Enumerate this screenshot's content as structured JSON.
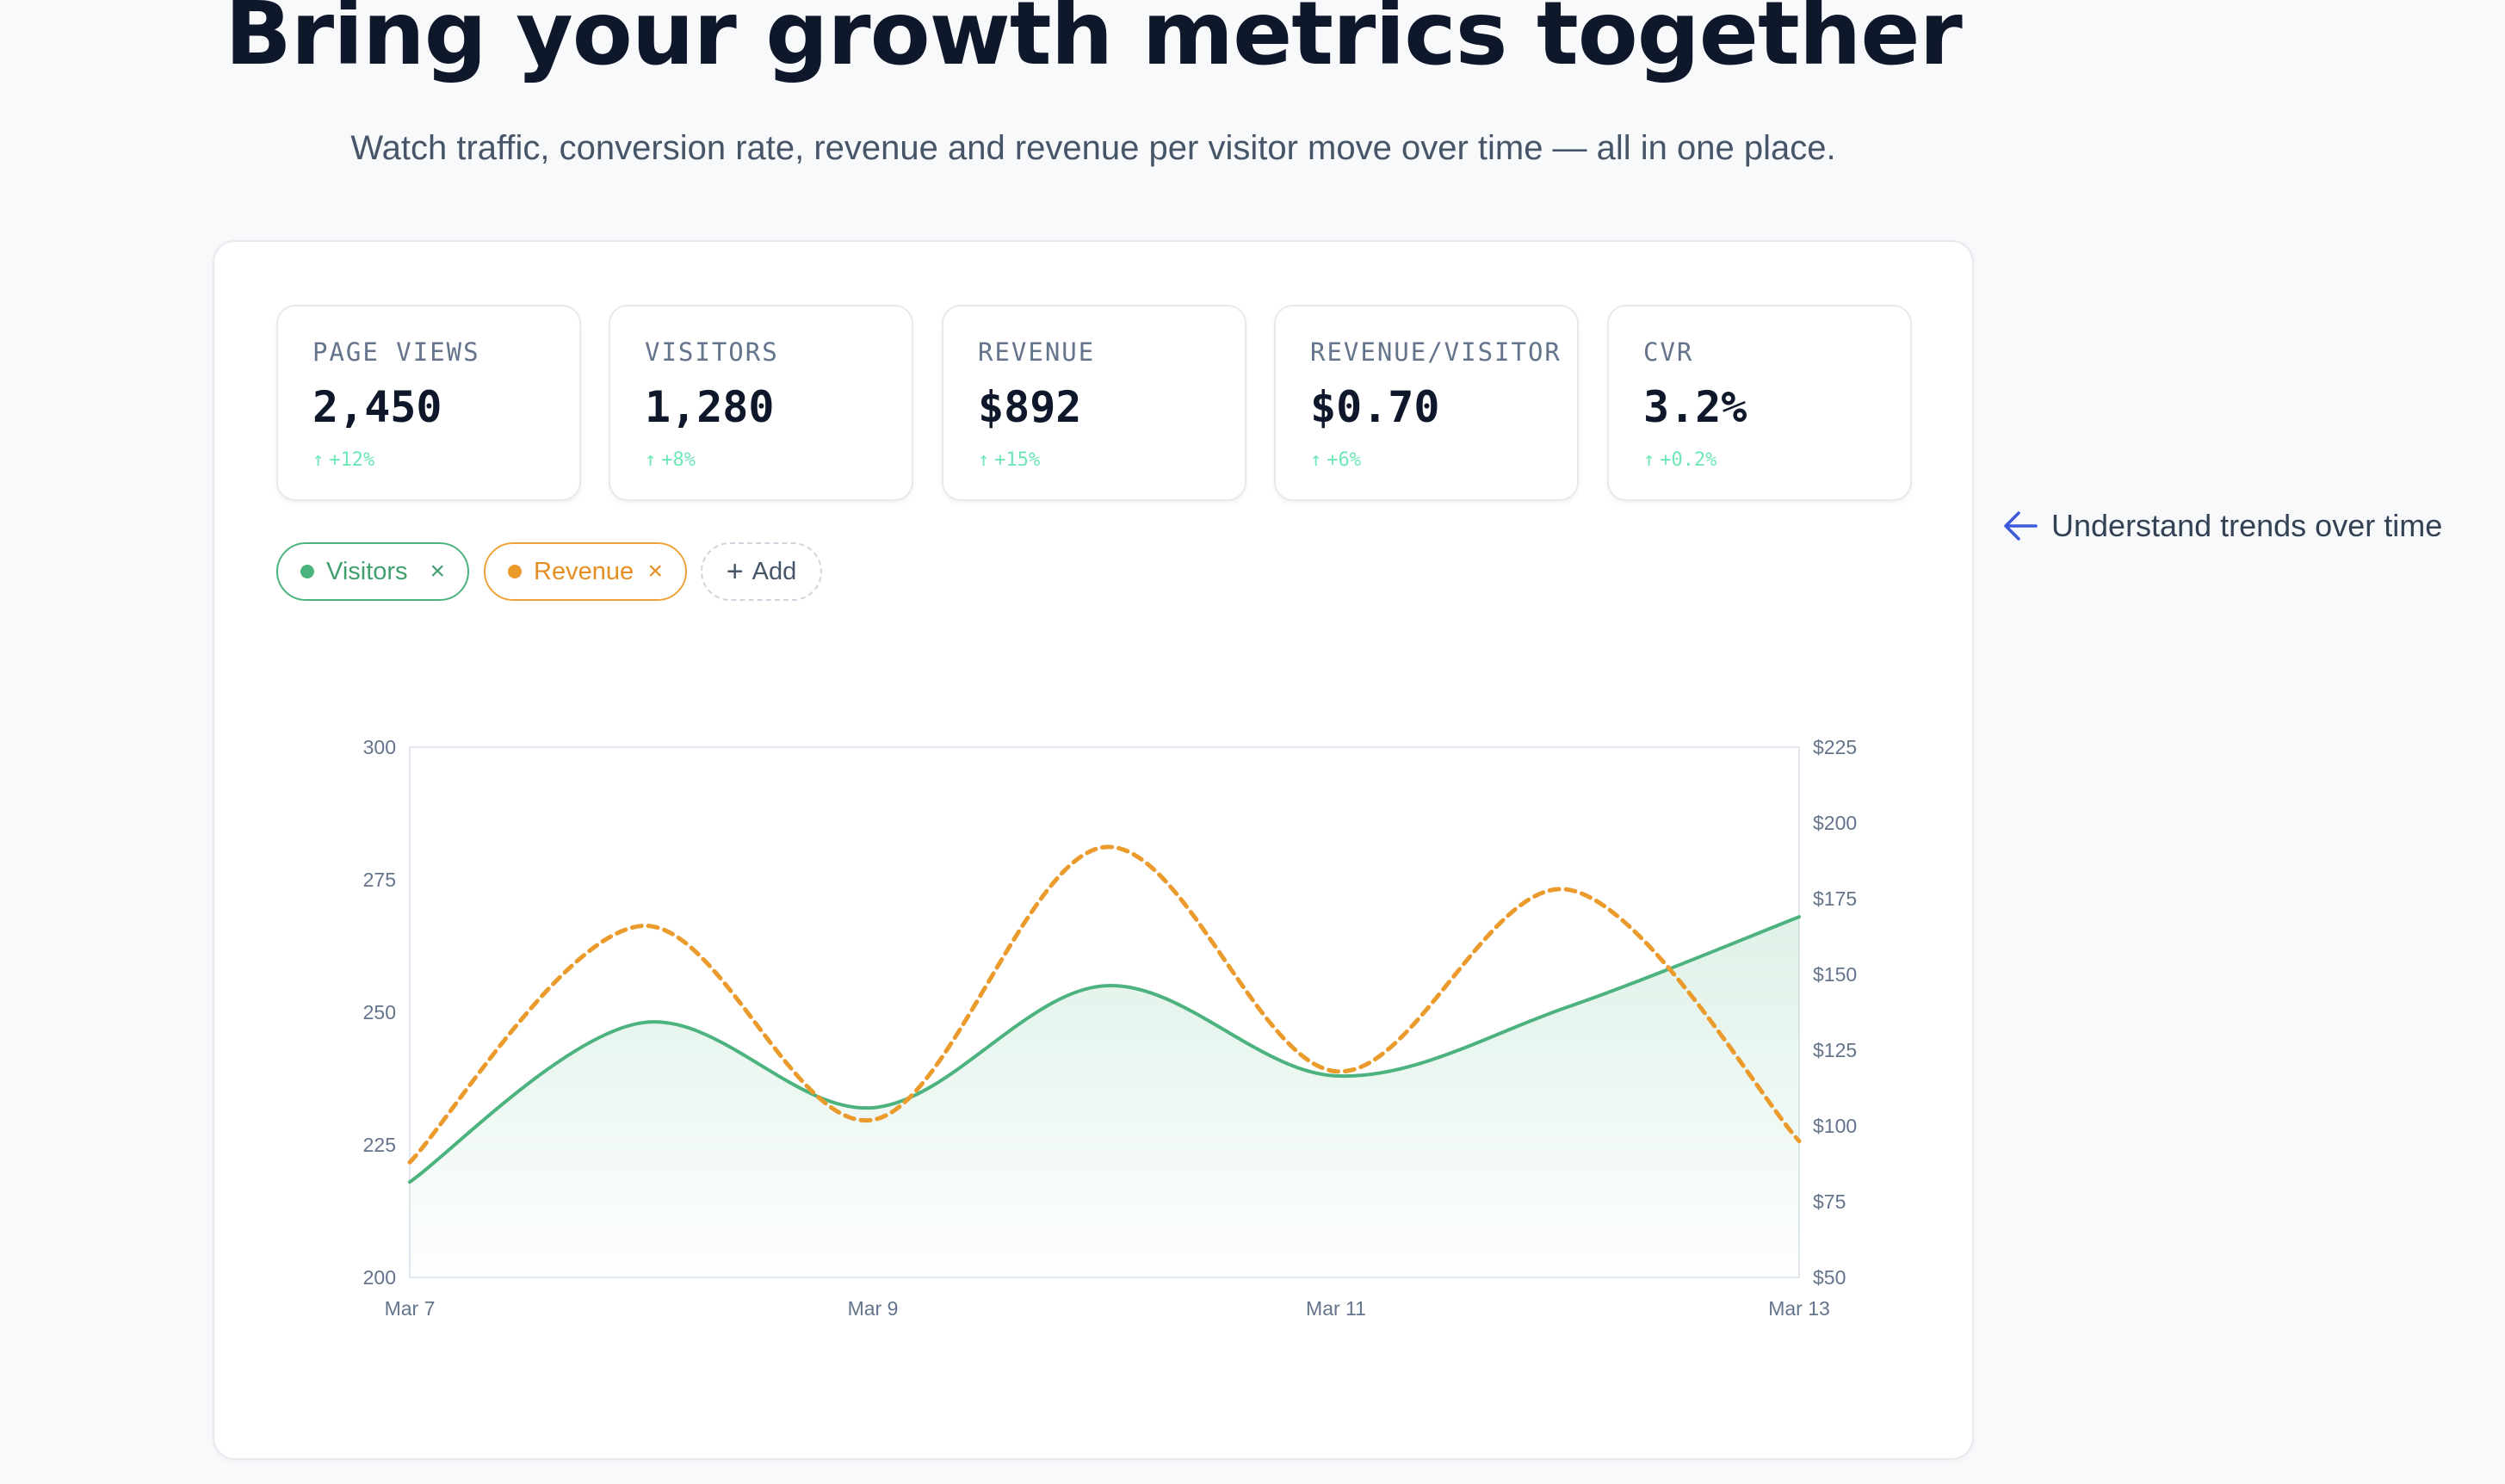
{
  "hero": {
    "title": "Bring your growth metrics together",
    "subtitle": "Watch traffic, conversion rate, revenue and revenue per visitor move over time — all in one place."
  },
  "kpis": [
    {
      "label": "PAGE VIEWS",
      "value": "2,450",
      "change": "+12%"
    },
    {
      "label": "VISITORS",
      "value": "1,280",
      "change": "+8%"
    },
    {
      "label": "REVENUE",
      "value": "$892",
      "change": "+15%"
    },
    {
      "label": "REVENUE/VISITOR",
      "value": "$0.70",
      "change": "+6%"
    },
    {
      "label": "CVR",
      "value": "3.2%",
      "change": "+0.2%"
    }
  ],
  "filters": {
    "visitors_label": "Visitors",
    "revenue_label": "Revenue",
    "add_label": "Add",
    "remove_glyph": "×",
    "add_glyph": "+"
  },
  "callout": {
    "text": "Understand trends over time"
  },
  "colors": {
    "visitors": "#4cb37e",
    "revenue": "#eb9a2c",
    "positive": "#6ee7b7",
    "axis": "#64748b"
  },
  "chart_data": {
    "type": "line",
    "x_tick_labels": [
      "Mar 7",
      "Mar 9",
      "Mar 11",
      "Mar 13"
    ],
    "y_left_ticks": [
      "200",
      "225",
      "250",
      "275",
      "300"
    ],
    "y_right_ticks": [
      "$50",
      "$75",
      "$100",
      "$125",
      "$150",
      "$175",
      "$200",
      "$225"
    ],
    "ylim_left": [
      200,
      300
    ],
    "ylim_right": [
      50,
      225
    ],
    "grid": false,
    "series": [
      {
        "name": "Visitors",
        "axis": "left",
        "style": "solid-area",
        "x": [
          "Mar 7",
          "Mar 8",
          "Mar 9",
          "Mar 10",
          "Mar 11",
          "Mar 12",
          "Mar 13"
        ],
        "values": [
          218,
          248,
          232,
          255,
          238,
          251,
          268
        ]
      },
      {
        "name": "Revenue",
        "axis": "right",
        "style": "dashed",
        "x": [
          "Mar 7",
          "Mar 8",
          "Mar 9",
          "Mar 10",
          "Mar 11",
          "Mar 12",
          "Mar 13"
        ],
        "values": [
          88,
          166,
          102,
          192,
          118,
          178,
          95
        ]
      }
    ]
  }
}
